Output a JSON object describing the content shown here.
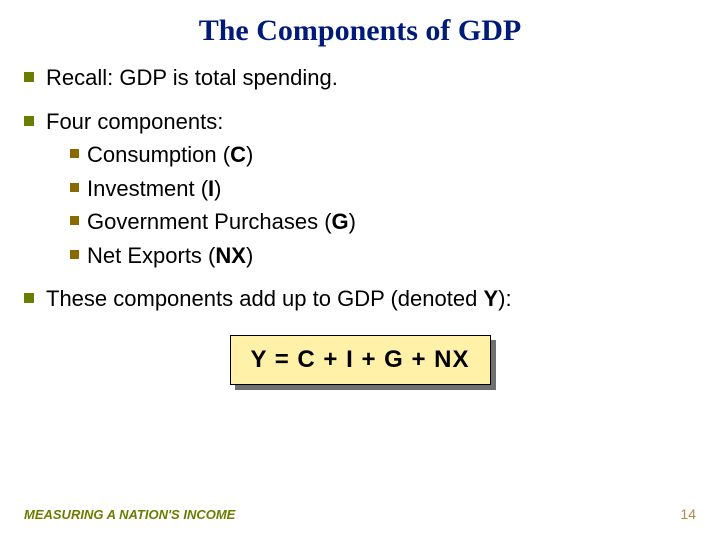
{
  "title": {
    "text": "The Components of GDP",
    "color": "#001a7a",
    "fontsize": 30
  },
  "bullets": {
    "color_level1": "#6b7d00",
    "color_level2": "#8a6a00",
    "text_color": "#000000",
    "fontsize_level1": 22,
    "fontsize_level2": 22,
    "b1": "Recall:  GDP is total spending.",
    "b2": "Four components:",
    "b2a_pre": "Consumption (",
    "b2a_sym": "C",
    "b2a_post": ")",
    "b2b_pre": "Investment (",
    "b2b_sym": "I",
    "b2b_post": ")",
    "b2c_pre": "Government Purchases (",
    "b2c_sym": "G",
    "b2c_post": ")",
    "b2d_pre": "Net Exports (",
    "b2d_sym": "NX",
    "b2d_post": ")",
    "b3_pre": "These components add up to GDP (denoted ",
    "b3_sym": "Y",
    "b3_post": "):"
  },
  "formula": {
    "text": "Y  =  C  +  I  +  G  +  NX",
    "fontsize": 24,
    "bg": "#fff1a8",
    "border": "#000000",
    "shadow": "#716f6f",
    "text_color": "#000000"
  },
  "footer": {
    "text": "MEASURING A NATION'S INCOME",
    "color": "#6b7d00",
    "fontsize": 13
  },
  "pagenum": {
    "text": "14",
    "color": "#b0894a",
    "fontsize": 14
  },
  "background": "#ffffff"
}
